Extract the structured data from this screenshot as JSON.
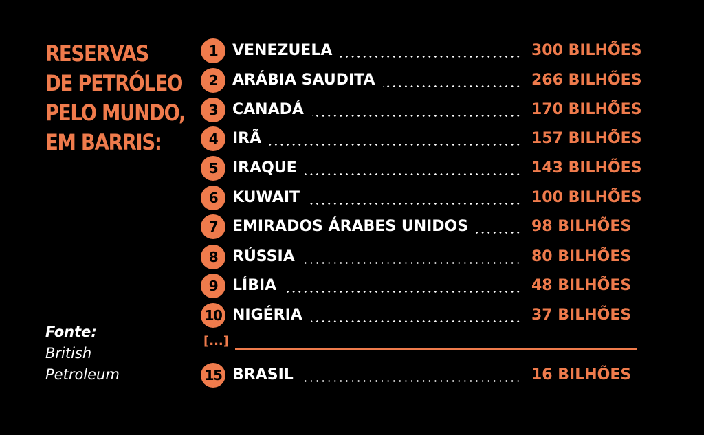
{
  "title_lines": [
    "RESERVAS",
    "DE PETRÓLEO",
    "PELO MUNDO,",
    "EM BARRIS:"
  ],
  "source": {
    "label": "Fonte:",
    "lines": [
      "British",
      "Petroleum"
    ]
  },
  "ellipsis": "[...]",
  "colors": {
    "accent": "#ef7b4c",
    "background": "#000000",
    "text": "#ffffff"
  },
  "chart_data": {
    "type": "table",
    "unit": "BILHÕES",
    "rows": [
      {
        "rank": "1",
        "country": "VENEZUELA",
        "value_label": "300 BILHÕES",
        "value": 300
      },
      {
        "rank": "2",
        "country": "ARÁBIA SAUDITA",
        "value_label": "266 BILHÕES",
        "value": 266
      },
      {
        "rank": "3",
        "country": "CANADÁ",
        "value_label": "170 BILHÕES",
        "value": 170
      },
      {
        "rank": "4",
        "country": "IRÃ",
        "value_label": "157 BILHÕES",
        "value": 157
      },
      {
        "rank": "5",
        "country": "IRAQUE",
        "value_label": "143 BILHÕES",
        "value": 143
      },
      {
        "rank": "6",
        "country": "KUWAIT",
        "value_label": "100 BILHÕES",
        "value": 100
      },
      {
        "rank": "7",
        "country": "EMIRADOS ÁRABES UNIDOS",
        "value_label": "98 BILHÕES",
        "value": 98
      },
      {
        "rank": "8",
        "country": "RÚSSIA",
        "value_label": "80 BILHÕES",
        "value": 80
      },
      {
        "rank": "9",
        "country": "LÍBIA",
        "value_label": "48 BILHÕES",
        "value": 48
      },
      {
        "rank": "10",
        "country": "NIGÉRIA",
        "value_label": "37 BILHÕES",
        "value": 37
      },
      {
        "rank": "15",
        "country": "BRASIL",
        "value_label": "16 BILHÕES",
        "value": 16
      }
    ]
  }
}
